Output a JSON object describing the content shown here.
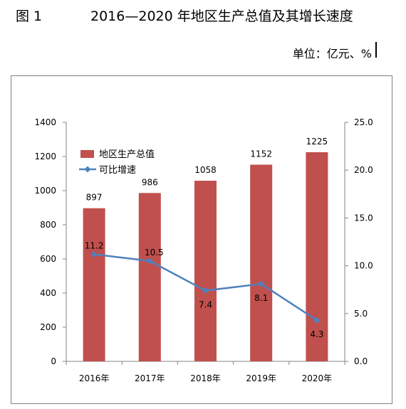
{
  "figure_label": "图 1",
  "title": "2016—2020 年地区生产总值及其增长速度",
  "unit": "单位：亿元、%",
  "colors": {
    "bar": "#c0504d",
    "line": "#4f81bd"
  },
  "chart_data": {
    "type": "bar",
    "title": "2016—2020 年地区生产总值及其增长速度",
    "categories": [
      "2016年",
      "2017年",
      "2018年",
      "2019年",
      "2020年"
    ],
    "series": [
      {
        "name": "地区生产总值",
        "type": "bar",
        "axis": "left",
        "values": [
          897,
          986,
          1058,
          1152,
          1225
        ],
        "labels": [
          "897",
          "986",
          "1058",
          "1152",
          "1225"
        ]
      },
      {
        "name": "可比增速",
        "type": "line",
        "axis": "right",
        "values": [
          11.2,
          10.5,
          7.4,
          8.1,
          4.3
        ],
        "labels": [
          "11.2",
          "10.5",
          "7.4",
          "8.1",
          "4.3"
        ]
      }
    ],
    "ylim_left": [
      0,
      1400
    ],
    "ylim_right": [
      0,
      25
    ],
    "yticks_left": [
      "0",
      "200",
      "400",
      "600",
      "800",
      "1000",
      "1200",
      "1400"
    ],
    "yticks_right": [
      "0.0",
      "5.0",
      "10.0",
      "15.0",
      "20.0",
      "25.0"
    ],
    "legend": "top-left",
    "grid": false
  }
}
